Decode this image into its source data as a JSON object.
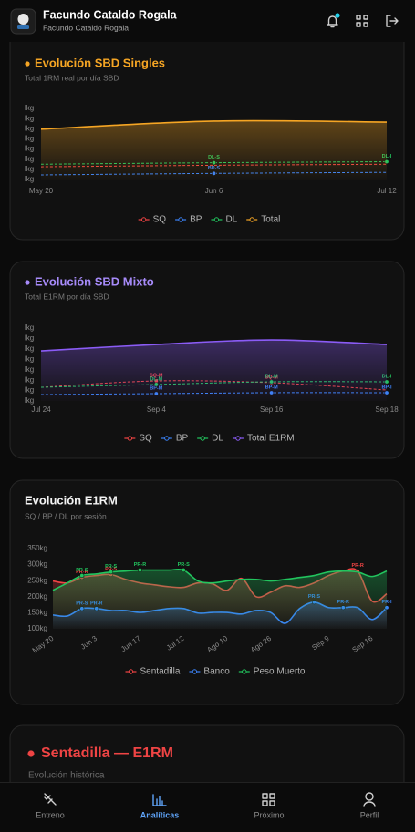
{
  "header": {
    "title": "Facundo Cataldo Rogala",
    "subtitle": "Facundo Cataldo Rogala"
  },
  "chart_data": [
    {
      "type": "line",
      "title": "Evolución SBD Singles",
      "subtitle": "Total 1RM real por día SBD",
      "categories": [
        "May 20",
        "Jun 6",
        "Jul 12"
      ],
      "ylim": [
        0,
        700
      ],
      "yticks": [
        {
          "value": 0,
          "label": "lkg"
        },
        {
          "value": 100,
          "label": "lkg"
        },
        {
          "value": 200,
          "label": "lkg"
        },
        {
          "value": 300,
          "label": "lkg"
        },
        {
          "value": 400,
          "label": "lkg"
        },
        {
          "value": 500,
          "label": "lkg"
        },
        {
          "value": 600,
          "label": "lkg"
        },
        {
          "value": 700,
          "label": "lkg"
        }
      ],
      "grid": false,
      "legend": "bottom",
      "series": [
        {
          "name": "SQ",
          "color": "#ef4444",
          "style": "dashed",
          "values": [
            125,
            140,
            150
          ]
        },
        {
          "name": "BP",
          "color": "#3b82f6",
          "style": "dashed",
          "values": [
            45,
            60,
            70
          ],
          "point_labels": [
            null,
            "BP-S",
            null
          ]
        },
        {
          "name": "DL",
          "color": "#22c55e",
          "style": "dashed",
          "values": [
            150,
            165,
            175
          ],
          "point_labels": [
            null,
            "DL-S",
            "DL-I"
          ]
        },
        {
          "name": "Total",
          "color": "#f5a524",
          "style": "solid",
          "area": true,
          "values": [
            495,
            575,
            565
          ]
        }
      ]
    },
    {
      "type": "line",
      "title": "Evolución SBD Mixto",
      "subtitle": "Total E1RM por día SBD",
      "categories": [
        "Jul 24",
        "Sep 4",
        "Sep 16",
        "Sep 18"
      ],
      "ylim": [
        0,
        700
      ],
      "yticks": [
        {
          "value": 0,
          "label": "lkg"
        },
        {
          "value": 100,
          "label": "lkg"
        },
        {
          "value": 200,
          "label": "lkg"
        },
        {
          "value": 300,
          "label": "lkg"
        },
        {
          "value": 400,
          "label": "lkg"
        },
        {
          "value": 500,
          "label": "lkg"
        },
        {
          "value": 600,
          "label": "lkg"
        },
        {
          "value": 700,
          "label": "lkg"
        }
      ],
      "grid": false,
      "legend": "bottom",
      "series": [
        {
          "name": "SQ",
          "color": "#ef4444",
          "style": "dashed",
          "values": [
            131,
            192,
            175,
            105
          ],
          "point_labels": [
            null,
            "SQ-M",
            "SQ-M",
            null
          ]
        },
        {
          "name": "BP",
          "color": "#3b82f6",
          "style": "dashed",
          "values": [
            61,
            70,
            79,
            79
          ],
          "point_labels": [
            null,
            "BP-M",
            "BP-M",
            "BP-I"
          ]
        },
        {
          "name": "DL",
          "color": "#22c55e",
          "style": "dashed",
          "values": [
            131,
            158,
            184,
            184
          ],
          "point_labels": [
            null,
            "DL-M",
            "DL-M",
            "DL-I"
          ]
        },
        {
          "name": "Total E1RM",
          "color": "#8b5cf6",
          "style": "solid",
          "area": true,
          "values": [
            481,
            542,
            586,
            542
          ]
        }
      ]
    },
    {
      "type": "line",
      "title": "Evolución E1RM",
      "subtitle": "SQ / BP / DL por sesión",
      "categories": [
        "May 20",
        null,
        null,
        "Jun 3",
        null,
        null,
        "Jun 17",
        null,
        null,
        "Jul 12",
        null,
        null,
        "Ago 10",
        null,
        null,
        "Ago 26",
        null,
        null,
        null,
        "Sep 9",
        null,
        null,
        "Sep 16",
        null
      ],
      "ylim": [
        100,
        350
      ],
      "yticks": [
        {
          "value": 100,
          "label": "100kg"
        },
        {
          "value": 150,
          "label": "150kg"
        },
        {
          "value": 200,
          "label": "200kg"
        },
        {
          "value": 250,
          "label": "250kg"
        },
        {
          "value": 300,
          "label": "300kg"
        },
        {
          "value": 350,
          "label": "350kg"
        }
      ],
      "grid": false,
      "legend": "bottom",
      "series": [
        {
          "name": "Sentadilla",
          "color": "#ef4444",
          "style": "solid",
          "area": true,
          "values": [
            249,
            243,
            260,
            266,
            269,
            254,
            243,
            237,
            231,
            229,
            243,
            240,
            220,
            257,
            200,
            214,
            234,
            229,
            243,
            266,
            280,
            280,
            186,
            209
          ],
          "point_labels": [
            null,
            null,
            "PR-R",
            null,
            "PR-S",
            null,
            null,
            null,
            null,
            null,
            null,
            null,
            null,
            null,
            null,
            null,
            null,
            null,
            null,
            null,
            null,
            "PR-R",
            null,
            null
          ]
        },
        {
          "name": "Banco",
          "color": "#3b82f6",
          "style": "solid",
          "area": true,
          "values": [
            143,
            140,
            163,
            163,
            157,
            157,
            151,
            157,
            163,
            163,
            149,
            151,
            151,
            146,
            157,
            151,
            117,
            163,
            183,
            166,
            166,
            166,
            129,
            166
          ],
          "point_labels": [
            null,
            null,
            "PR-S",
            "PR-R",
            null,
            null,
            null,
            null,
            null,
            null,
            null,
            null,
            null,
            null,
            null,
            null,
            null,
            null,
            "PR-S",
            null,
            "PR-R",
            null,
            null,
            "PR-I"
          ]
        },
        {
          "name": "Peso Muerto",
          "color": "#22c55e",
          "style": "solid",
          "area": true,
          "values": [
            220,
            243,
            266,
            271,
            277,
            280,
            283,
            283,
            283,
            283,
            249,
            243,
            249,
            254,
            254,
            249,
            254,
            260,
            266,
            277,
            280,
            277,
            263,
            280
          ],
          "point_labels": [
            null,
            null,
            "PR-S",
            null,
            "PR-S",
            null,
            "PR-R",
            null,
            null,
            "PR-S",
            null,
            null,
            null,
            null,
            null,
            null,
            null,
            null,
            null,
            null,
            null,
            null,
            null,
            null
          ]
        }
      ]
    }
  ],
  "section": {
    "title": "Sentadilla — E1RM",
    "subtitle": "Evolución histórica"
  },
  "nav": {
    "items": [
      "Entreno",
      "Analíticas",
      "Próximo",
      "Perfil"
    ],
    "active": 1
  }
}
